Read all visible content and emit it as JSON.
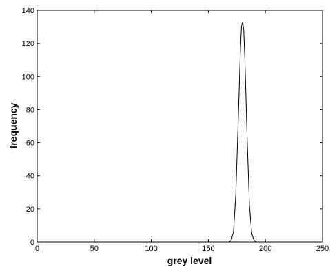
{
  "chart_data": {
    "type": "line",
    "title": "",
    "xlabel": "grey level",
    "ylabel": "frequency",
    "xlim": [
      0,
      250
    ],
    "ylim": [
      0,
      140
    ],
    "xticks": [
      0,
      50,
      100,
      150,
      200,
      250
    ],
    "yticks": [
      0,
      20,
      40,
      60,
      80,
      100,
      120,
      140
    ],
    "xtick_labels": [
      "0",
      "50",
      "100",
      "150",
      "200",
      "250"
    ],
    "ytick_labels": [
      "0",
      "20",
      "40",
      "60",
      "80",
      "100",
      "120",
      "140"
    ],
    "grid": false,
    "legend": null,
    "series": [
      {
        "color": "#000000",
        "x": [
          0,
          168,
          170,
          172,
          174,
          176,
          178,
          179,
          180,
          181,
          182,
          184,
          186,
          188,
          190,
          192,
          250
        ],
        "y": [
          0,
          0,
          1,
          6,
          28,
          70,
          115,
          130,
          133,
          128,
          110,
          62,
          22,
          5,
          1,
          0,
          0
        ]
      }
    ]
  }
}
